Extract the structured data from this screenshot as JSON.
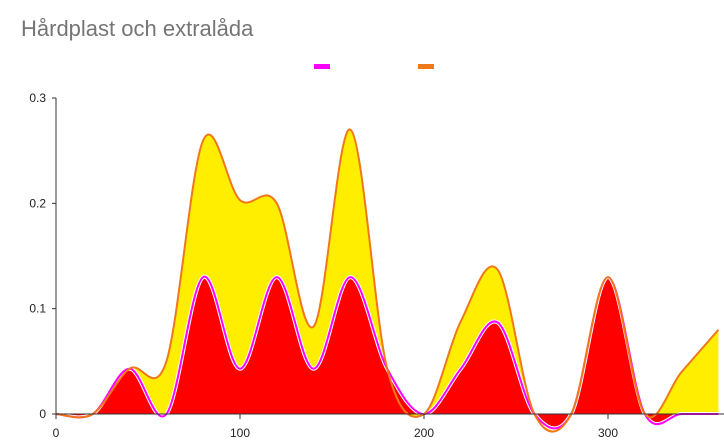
{
  "chart_data": {
    "type": "area",
    "title": "Hårdplast och extralåda",
    "xlabel": "",
    "ylabel": "",
    "xlim": [
      0,
      360
    ],
    "ylim": [
      0,
      0.3
    ],
    "x_ticks": [
      "0",
      "100",
      "200",
      "300"
    ],
    "y_ticks": [
      "0",
      "0.1",
      "0.2",
      "0.3"
    ],
    "legend_position": "top-center",
    "grid": false,
    "x": [
      0,
      20,
      40,
      60,
      80,
      100,
      120,
      140,
      160,
      180,
      200,
      220,
      240,
      260,
      280,
      300,
      320,
      340,
      360
    ],
    "series": [
      {
        "name": "",
        "color": "#ff00ff",
        "values": [
          0,
          0,
          0.043,
          0,
          0.13,
          0.043,
          0.13,
          0.043,
          0.13,
          0.043,
          0,
          0.043,
          0.087,
          0,
          0,
          0.13,
          0,
          0,
          0
        ]
      },
      {
        "name": "",
        "color": "#f07818",
        "values": [
          0,
          0,
          0,
          0.05,
          0.13,
          0.16,
          0.07,
          0.04,
          0.14,
          0,
          0,
          0.045,
          0.05,
          0,
          0,
          0,
          0,
          0.04,
          0.08
        ]
      }
    ],
    "fill_colors": {
      "lower": "#ff0000",
      "upper": "#ffee00"
    }
  }
}
